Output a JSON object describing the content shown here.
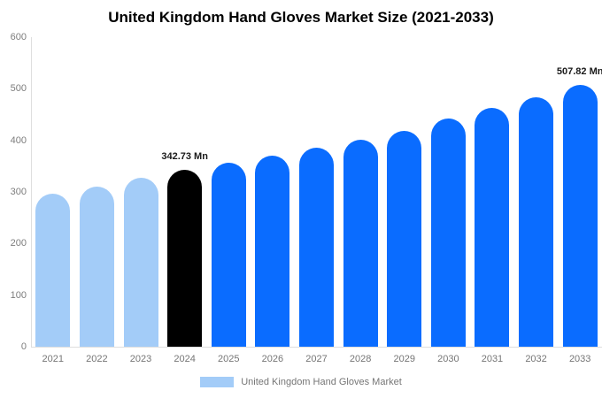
{
  "title": "United Kingdom Hand Gloves Market Size (2021-2033)",
  "chart_data": {
    "type": "bar",
    "title": "United Kingdom Hand Gloves Market Size (2021-2033)",
    "categories": [
      "2021",
      "2022",
      "2023",
      "2024",
      "2025",
      "2026",
      "2027",
      "2028",
      "2029",
      "2030",
      "2031",
      "2032",
      "2033"
    ],
    "values": [
      297,
      311,
      327,
      342.73,
      356,
      371,
      386,
      402,
      419,
      442,
      463,
      484,
      507.82
    ],
    "value_labels": [
      null,
      null,
      null,
      "342.73 Mn",
      null,
      null,
      null,
      null,
      null,
      null,
      null,
      null,
      "507.82 Mn"
    ],
    "bar_color_keys": [
      "historical",
      "historical",
      "historical",
      "base_year",
      "forecast",
      "forecast",
      "forecast",
      "forecast",
      "forecast",
      "forecast",
      "forecast",
      "forecast",
      "forecast"
    ],
    "colors": {
      "historical": "#A3CCF8",
      "base_year": "#000000",
      "forecast": "#0A6CFF",
      "axis_line": "#DEDEDE",
      "tick_text": "#7D7D7D",
      "value_label_text": "#1A1A1A"
    },
    "unit": "Mn",
    "ylim": [
      0,
      600
    ],
    "yticks": [
      "0",
      "100",
      "200",
      "300",
      "400",
      "500",
      "600"
    ],
    "grid": false,
    "legend": {
      "label": "United Kingdom Hand Gloves Market",
      "swatch_color": "#A3CCF8",
      "position": "bottom"
    }
  }
}
